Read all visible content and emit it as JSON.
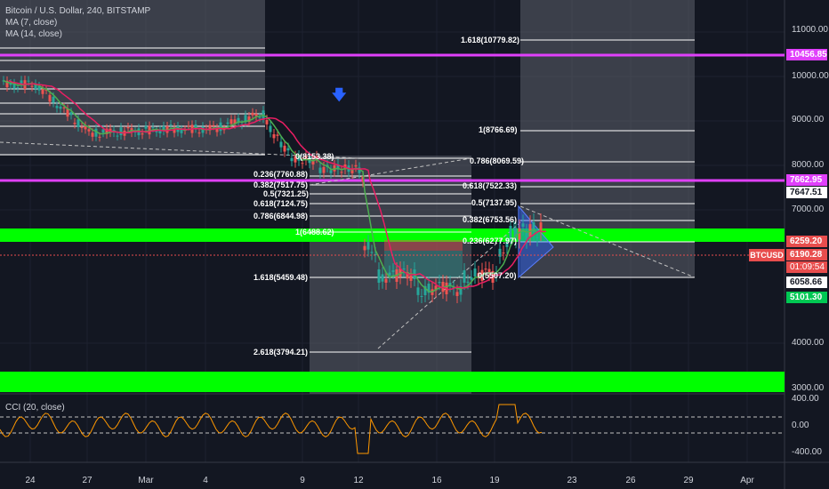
{
  "legend": {
    "title": "Bitcoin / U.S. Dollar, 240, BITSTAMP",
    "ma7": "MA (7, close)",
    "ma14": "MA (14, close)",
    "cci": "CCI (20, close)"
  },
  "price_axis": [
    "11000.00",
    "10000.00",
    "9000.00",
    "8000.00",
    "7000.00",
    "4000.00",
    "3000.00"
  ],
  "cci_axis": [
    "400.00",
    "0.00",
    "-400.00"
  ],
  "price_tags": {
    "magenta_top": "10456.85",
    "magenta_mid": "7662.95",
    "white_mid": "7647.51",
    "red_top": "6259.20",
    "red_last": "6190.28",
    "countdown": "01:09:54",
    "white_low": "6058.66",
    "green_low": "5101.30"
  },
  "symbol_tag": "BTCUSD",
  "dates": [
    "24",
    "27",
    "Mar",
    "4",
    "9",
    "12",
    "16",
    "19",
    "23",
    "26",
    "29",
    "Apr"
  ],
  "fib_left": [
    "0(8153.38)",
    "0.236(7760.88)",
    "0.382(7517.75)",
    "0.5(7321.25)",
    "0.618(7124.75)",
    "0.786(6844.98)",
    "1(6488.62)",
    "1.618(5459.48)",
    "2.618(3794.21)"
  ],
  "fib_right": [
    "1.618(10779.82)",
    "1(8766.69)",
    "0.786(8069.59)",
    "0.618(7522.33)",
    "0.5(7137.95)",
    "0.382(6753.56)",
    "0.236(6277.97)",
    "0(5507.20)"
  ],
  "colors": {
    "background": "#131722",
    "magenta": "#e040fb",
    "green_zone": "#00ff00",
    "red_tag": "#e84d4d",
    "green_tag": "#00c853",
    "ma7": "#4caf50",
    "ma14": "#e91e63",
    "cci_line": "#ff9800"
  },
  "icons": {
    "down_arrow": "arrow-down-icon"
  }
}
